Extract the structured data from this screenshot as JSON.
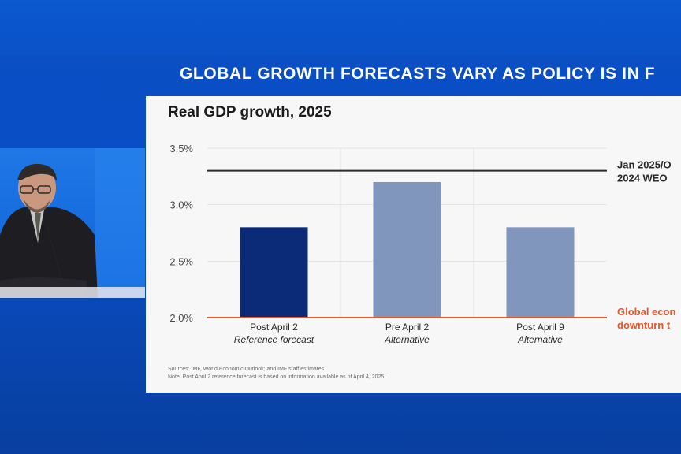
{
  "headline": "GLOBAL GROWTH FORECASTS VARY AS POLICY IS IN F",
  "chart_data": {
    "type": "bar",
    "title": "Real GDP growth, 2025",
    "categories": [
      {
        "name": "Post April 2",
        "sub": "Reference forecast"
      },
      {
        "name": "Pre April 2",
        "sub": "Alternative"
      },
      {
        "name": "Post April 9",
        "sub": "Alternative"
      }
    ],
    "values": [
      2.8,
      3.2,
      2.8
    ],
    "bar_colors": [
      "#0b2a78",
      "#8096bd",
      "#8096bd"
    ],
    "ylim": [
      2.0,
      3.5
    ],
    "yticks": [
      "3.5%",
      "3.0%",
      "2.5%",
      "2.0%"
    ],
    "ytick_values": [
      3.5,
      3.0,
      2.5,
      2.0
    ],
    "grid": true,
    "reference_lines": [
      {
        "value": 3.3,
        "color": "#2b2b2b",
        "label_lines": [
          "Jan 2025/O",
          "2024 WEO"
        ]
      },
      {
        "value": 2.0,
        "color": "#e8572a",
        "label_lines": [
          "Global econ",
          "downturn t"
        ]
      }
    ],
    "sources": "Sources: IMF, World Economic Outlook; and IMF staff estimates.",
    "note": "Note: Post April 2 reference forecast is based on information available as of April 4, 2025."
  }
}
